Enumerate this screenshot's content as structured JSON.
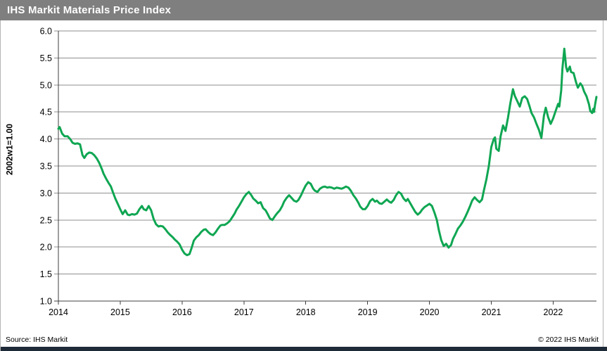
{
  "header": {
    "title": "IHS Markit Materials Price Index",
    "background": "#7f7f7f"
  },
  "chart_data": {
    "type": "line",
    "title": "IHS Markit Materials Price Index",
    "xlabel": "",
    "ylabel": "2002w1=1.00",
    "xlim": [
      2014,
      2022.7
    ],
    "ylim": [
      1.0,
      6.0
    ],
    "grid": "horizontal-only",
    "legend": "none",
    "grid_color": "#8f8f8f",
    "axis_color": "#3f3f3f",
    "xticks": [
      2014,
      2015,
      2016,
      2017,
      2018,
      2019,
      2020,
      2021,
      2022
    ],
    "xtick_labels": [
      "2014",
      "2015",
      "2016",
      "2017",
      "2018",
      "2019",
      "2020",
      "2021",
      "2022"
    ],
    "yticks": [
      1.0,
      1.5,
      2.0,
      2.5,
      3.0,
      3.5,
      4.0,
      4.5,
      5.0,
      5.5,
      6.0
    ],
    "ytick_labels": [
      "1.0",
      "1.5",
      "2.0",
      "2.5",
      "3.0",
      "3.5",
      "4.0",
      "4.5",
      "5.0",
      "5.5",
      "6.0"
    ],
    "line_color": "#0fa652",
    "line_width": 3,
    "series": [
      {
        "name": "IHS Markit Materials Price Index (2002w1=1.00)",
        "points": [
          [
            2014.0,
            4.19
          ],
          [
            2014.02,
            4.22
          ],
          [
            2014.06,
            4.1
          ],
          [
            2014.1,
            4.05
          ],
          [
            2014.15,
            4.05
          ],
          [
            2014.19,
            4.0
          ],
          [
            2014.23,
            3.93
          ],
          [
            2014.27,
            3.91
          ],
          [
            2014.31,
            3.92
          ],
          [
            2014.35,
            3.9
          ],
          [
            2014.39,
            3.7
          ],
          [
            2014.42,
            3.65
          ],
          [
            2014.46,
            3.72
          ],
          [
            2014.5,
            3.75
          ],
          [
            2014.54,
            3.74
          ],
          [
            2014.58,
            3.7
          ],
          [
            2014.62,
            3.64
          ],
          [
            2014.66,
            3.56
          ],
          [
            2014.7,
            3.45
          ],
          [
            2014.73,
            3.36
          ],
          [
            2014.77,
            3.27
          ],
          [
            2014.81,
            3.19
          ],
          [
            2014.85,
            3.12
          ],
          [
            2014.88,
            3.02
          ],
          [
            2014.92,
            2.9
          ],
          [
            2014.96,
            2.8
          ],
          [
            2015.0,
            2.7
          ],
          [
            2015.04,
            2.61
          ],
          [
            2015.08,
            2.68
          ],
          [
            2015.12,
            2.6
          ],
          [
            2015.15,
            2.59
          ],
          [
            2015.19,
            2.61
          ],
          [
            2015.23,
            2.6
          ],
          [
            2015.27,
            2.62
          ],
          [
            2015.31,
            2.7
          ],
          [
            2015.35,
            2.76
          ],
          [
            2015.38,
            2.7
          ],
          [
            2015.42,
            2.68
          ],
          [
            2015.46,
            2.76
          ],
          [
            2015.5,
            2.68
          ],
          [
            2015.54,
            2.52
          ],
          [
            2015.58,
            2.42
          ],
          [
            2015.62,
            2.38
          ],
          [
            2015.65,
            2.39
          ],
          [
            2015.69,
            2.38
          ],
          [
            2015.73,
            2.33
          ],
          [
            2015.77,
            2.27
          ],
          [
            2015.81,
            2.22
          ],
          [
            2015.85,
            2.18
          ],
          [
            2015.88,
            2.14
          ],
          [
            2015.92,
            2.1
          ],
          [
            2015.96,
            2.05
          ],
          [
            2016.0,
            1.95
          ],
          [
            2016.04,
            1.88
          ],
          [
            2016.08,
            1.85
          ],
          [
            2016.12,
            1.87
          ],
          [
            2016.15,
            1.97
          ],
          [
            2016.19,
            2.12
          ],
          [
            2016.23,
            2.18
          ],
          [
            2016.27,
            2.22
          ],
          [
            2016.31,
            2.28
          ],
          [
            2016.35,
            2.32
          ],
          [
            2016.38,
            2.33
          ],
          [
            2016.42,
            2.28
          ],
          [
            2016.46,
            2.24
          ],
          [
            2016.5,
            2.22
          ],
          [
            2016.54,
            2.27
          ],
          [
            2016.58,
            2.34
          ],
          [
            2016.62,
            2.4
          ],
          [
            2016.65,
            2.41
          ],
          [
            2016.69,
            2.41
          ],
          [
            2016.73,
            2.44
          ],
          [
            2016.77,
            2.48
          ],
          [
            2016.81,
            2.55
          ],
          [
            2016.85,
            2.62
          ],
          [
            2016.88,
            2.69
          ],
          [
            2016.92,
            2.76
          ],
          [
            2016.96,
            2.84
          ],
          [
            2017.0,
            2.92
          ],
          [
            2017.04,
            2.98
          ],
          [
            2017.08,
            3.02
          ],
          [
            2017.12,
            2.96
          ],
          [
            2017.15,
            2.9
          ],
          [
            2017.19,
            2.86
          ],
          [
            2017.23,
            2.81
          ],
          [
            2017.27,
            2.83
          ],
          [
            2017.31,
            2.72
          ],
          [
            2017.35,
            2.68
          ],
          [
            2017.38,
            2.62
          ],
          [
            2017.42,
            2.53
          ],
          [
            2017.46,
            2.5
          ],
          [
            2017.5,
            2.57
          ],
          [
            2017.54,
            2.63
          ],
          [
            2017.58,
            2.68
          ],
          [
            2017.62,
            2.76
          ],
          [
            2017.65,
            2.84
          ],
          [
            2017.69,
            2.91
          ],
          [
            2017.73,
            2.96
          ],
          [
            2017.77,
            2.91
          ],
          [
            2017.81,
            2.86
          ],
          [
            2017.85,
            2.84
          ],
          [
            2017.88,
            2.87
          ],
          [
            2017.92,
            2.95
          ],
          [
            2017.96,
            3.05
          ],
          [
            2018.0,
            3.14
          ],
          [
            2018.04,
            3.2
          ],
          [
            2018.08,
            3.17
          ],
          [
            2018.12,
            3.08
          ],
          [
            2018.15,
            3.04
          ],
          [
            2018.19,
            3.02
          ],
          [
            2018.23,
            3.08
          ],
          [
            2018.27,
            3.11
          ],
          [
            2018.31,
            3.12
          ],
          [
            2018.35,
            3.1
          ],
          [
            2018.38,
            3.11
          ],
          [
            2018.42,
            3.1
          ],
          [
            2018.46,
            3.08
          ],
          [
            2018.5,
            3.1
          ],
          [
            2018.54,
            3.09
          ],
          [
            2018.58,
            3.08
          ],
          [
            2018.62,
            3.1
          ],
          [
            2018.65,
            3.12
          ],
          [
            2018.69,
            3.1
          ],
          [
            2018.73,
            3.04
          ],
          [
            2018.77,
            2.96
          ],
          [
            2018.81,
            2.9
          ],
          [
            2018.85,
            2.82
          ],
          [
            2018.88,
            2.75
          ],
          [
            2018.92,
            2.7
          ],
          [
            2018.96,
            2.7
          ],
          [
            2019.0,
            2.76
          ],
          [
            2019.04,
            2.85
          ],
          [
            2019.08,
            2.89
          ],
          [
            2019.12,
            2.84
          ],
          [
            2019.15,
            2.86
          ],
          [
            2019.19,
            2.81
          ],
          [
            2019.23,
            2.8
          ],
          [
            2019.27,
            2.84
          ],
          [
            2019.31,
            2.88
          ],
          [
            2019.35,
            2.84
          ],
          [
            2019.38,
            2.82
          ],
          [
            2019.42,
            2.87
          ],
          [
            2019.46,
            2.96
          ],
          [
            2019.5,
            3.02
          ],
          [
            2019.54,
            2.99
          ],
          [
            2019.58,
            2.9
          ],
          [
            2019.62,
            2.85
          ],
          [
            2019.65,
            2.89
          ],
          [
            2019.69,
            2.81
          ],
          [
            2019.73,
            2.73
          ],
          [
            2019.77,
            2.65
          ],
          [
            2019.81,
            2.6
          ],
          [
            2019.85,
            2.64
          ],
          [
            2019.88,
            2.69
          ],
          [
            2019.92,
            2.74
          ],
          [
            2019.96,
            2.77
          ],
          [
            2020.0,
            2.8
          ],
          [
            2020.04,
            2.76
          ],
          [
            2020.08,
            2.64
          ],
          [
            2020.12,
            2.5
          ],
          [
            2020.15,
            2.32
          ],
          [
            2020.19,
            2.13
          ],
          [
            2020.23,
            2.02
          ],
          [
            2020.27,
            2.06
          ],
          [
            2020.31,
            1.99
          ],
          [
            2020.35,
            2.04
          ],
          [
            2020.38,
            2.15
          ],
          [
            2020.42,
            2.24
          ],
          [
            2020.46,
            2.34
          ],
          [
            2020.5,
            2.4
          ],
          [
            2020.54,
            2.47
          ],
          [
            2020.58,
            2.56
          ],
          [
            2020.62,
            2.66
          ],
          [
            2020.65,
            2.74
          ],
          [
            2020.69,
            2.86
          ],
          [
            2020.73,
            2.92
          ],
          [
            2020.77,
            2.87
          ],
          [
            2020.81,
            2.83
          ],
          [
            2020.85,
            2.88
          ],
          [
            2020.88,
            3.05
          ],
          [
            2020.92,
            3.25
          ],
          [
            2020.96,
            3.5
          ],
          [
            2021.0,
            3.85
          ],
          [
            2021.04,
            4.0
          ],
          [
            2021.06,
            4.03
          ],
          [
            2021.08,
            3.82
          ],
          [
            2021.12,
            3.78
          ],
          [
            2021.15,
            4.05
          ],
          [
            2021.19,
            4.25
          ],
          [
            2021.23,
            4.15
          ],
          [
            2021.27,
            4.4
          ],
          [
            2021.31,
            4.68
          ],
          [
            2021.35,
            4.92
          ],
          [
            2021.38,
            4.8
          ],
          [
            2021.42,
            4.7
          ],
          [
            2021.46,
            4.6
          ],
          [
            2021.5,
            4.76
          ],
          [
            2021.54,
            4.79
          ],
          [
            2021.58,
            4.74
          ],
          [
            2021.62,
            4.6
          ],
          [
            2021.65,
            4.48
          ],
          [
            2021.69,
            4.4
          ],
          [
            2021.73,
            4.28
          ],
          [
            2021.77,
            4.17
          ],
          [
            2021.81,
            4.02
          ],
          [
            2021.85,
            4.43
          ],
          [
            2021.88,
            4.58
          ],
          [
            2021.92,
            4.4
          ],
          [
            2021.96,
            4.28
          ],
          [
            2022.0,
            4.38
          ],
          [
            2022.04,
            4.52
          ],
          [
            2022.08,
            4.65
          ],
          [
            2022.1,
            4.6
          ],
          [
            2022.13,
            4.9
          ],
          [
            2022.15,
            5.3
          ],
          [
            2022.18,
            5.67
          ],
          [
            2022.21,
            5.33
          ],
          [
            2022.23,
            5.25
          ],
          [
            2022.27,
            5.34
          ],
          [
            2022.29,
            5.24
          ],
          [
            2022.33,
            5.22
          ],
          [
            2022.37,
            5.05
          ],
          [
            2022.4,
            4.95
          ],
          [
            2022.44,
            5.03
          ],
          [
            2022.47,
            4.98
          ],
          [
            2022.5,
            4.88
          ],
          [
            2022.54,
            4.79
          ],
          [
            2022.58,
            4.64
          ],
          [
            2022.6,
            4.52
          ],
          [
            2022.63,
            4.48
          ],
          [
            2022.65,
            4.56
          ],
          [
            2022.66,
            4.5
          ],
          [
            2022.68,
            4.65
          ],
          [
            2022.7,
            4.78
          ]
        ]
      }
    ]
  },
  "footer": {
    "source": "Source: IHS Markit",
    "copyright": "© 2022  IHS Markit",
    "bar_color": "#1e2a38"
  }
}
